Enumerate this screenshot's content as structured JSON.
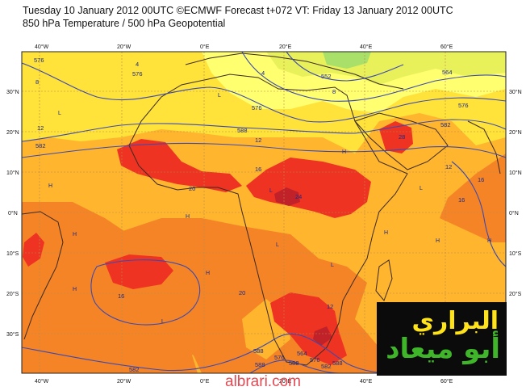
{
  "header": {
    "line1": "Tuesday 10 January 2012 00UTC ©ECMWF Forecast t+072 VT: Friday 13 January 2012 00UTC",
    "line2": "850 hPa Temperature / 500 hPa Geopotential"
  },
  "axes": {
    "lon_ticks": [
      "40°W",
      "20°W",
      "0°E",
      "20°E",
      "40°E",
      "60°E"
    ],
    "lat_ticks": [
      "30°N",
      "20°N",
      "10°N",
      "0°N",
      "10°S",
      "20°S",
      "30°S"
    ]
  },
  "isotherm_labels": [
    "4",
    "8",
    "12",
    "16",
    "20",
    "24",
    "28",
    "20",
    "16",
    "12",
    "12",
    "16",
    "8",
    "4",
    "16",
    "12"
  ],
  "geopotential_labels": [
    "576",
    "576",
    "588",
    "576",
    "552",
    "564",
    "576",
    "582",
    "582",
    "582",
    "588",
    "588",
    "576",
    "588",
    "564",
    "576",
    "582",
    "588"
  ],
  "pressure_marks": [
    "L",
    "L",
    "H",
    "H",
    "L",
    "H",
    "L",
    "H",
    "L",
    "H",
    "H",
    "L",
    "H",
    "H",
    "L",
    "H"
  ],
  "colors": {
    "t_lt4": "#a9e06a",
    "t_4_8": "#e8f05a",
    "t_8_12": "#ffff70",
    "t_12_16": "#ffe23a",
    "t_16_20": "#ffb52e",
    "t_20_24": "#f58426",
    "t_24_28": "#ee3323",
    "t_gt28": "#c1222a",
    "coast": "#3a2a22",
    "contour": "#3c4ab0",
    "grid": "#b88a4a"
  },
  "logo": {
    "line1": "البراري",
    "line2": "أبو ميعاد"
  },
  "watermark": "albrari.com"
}
